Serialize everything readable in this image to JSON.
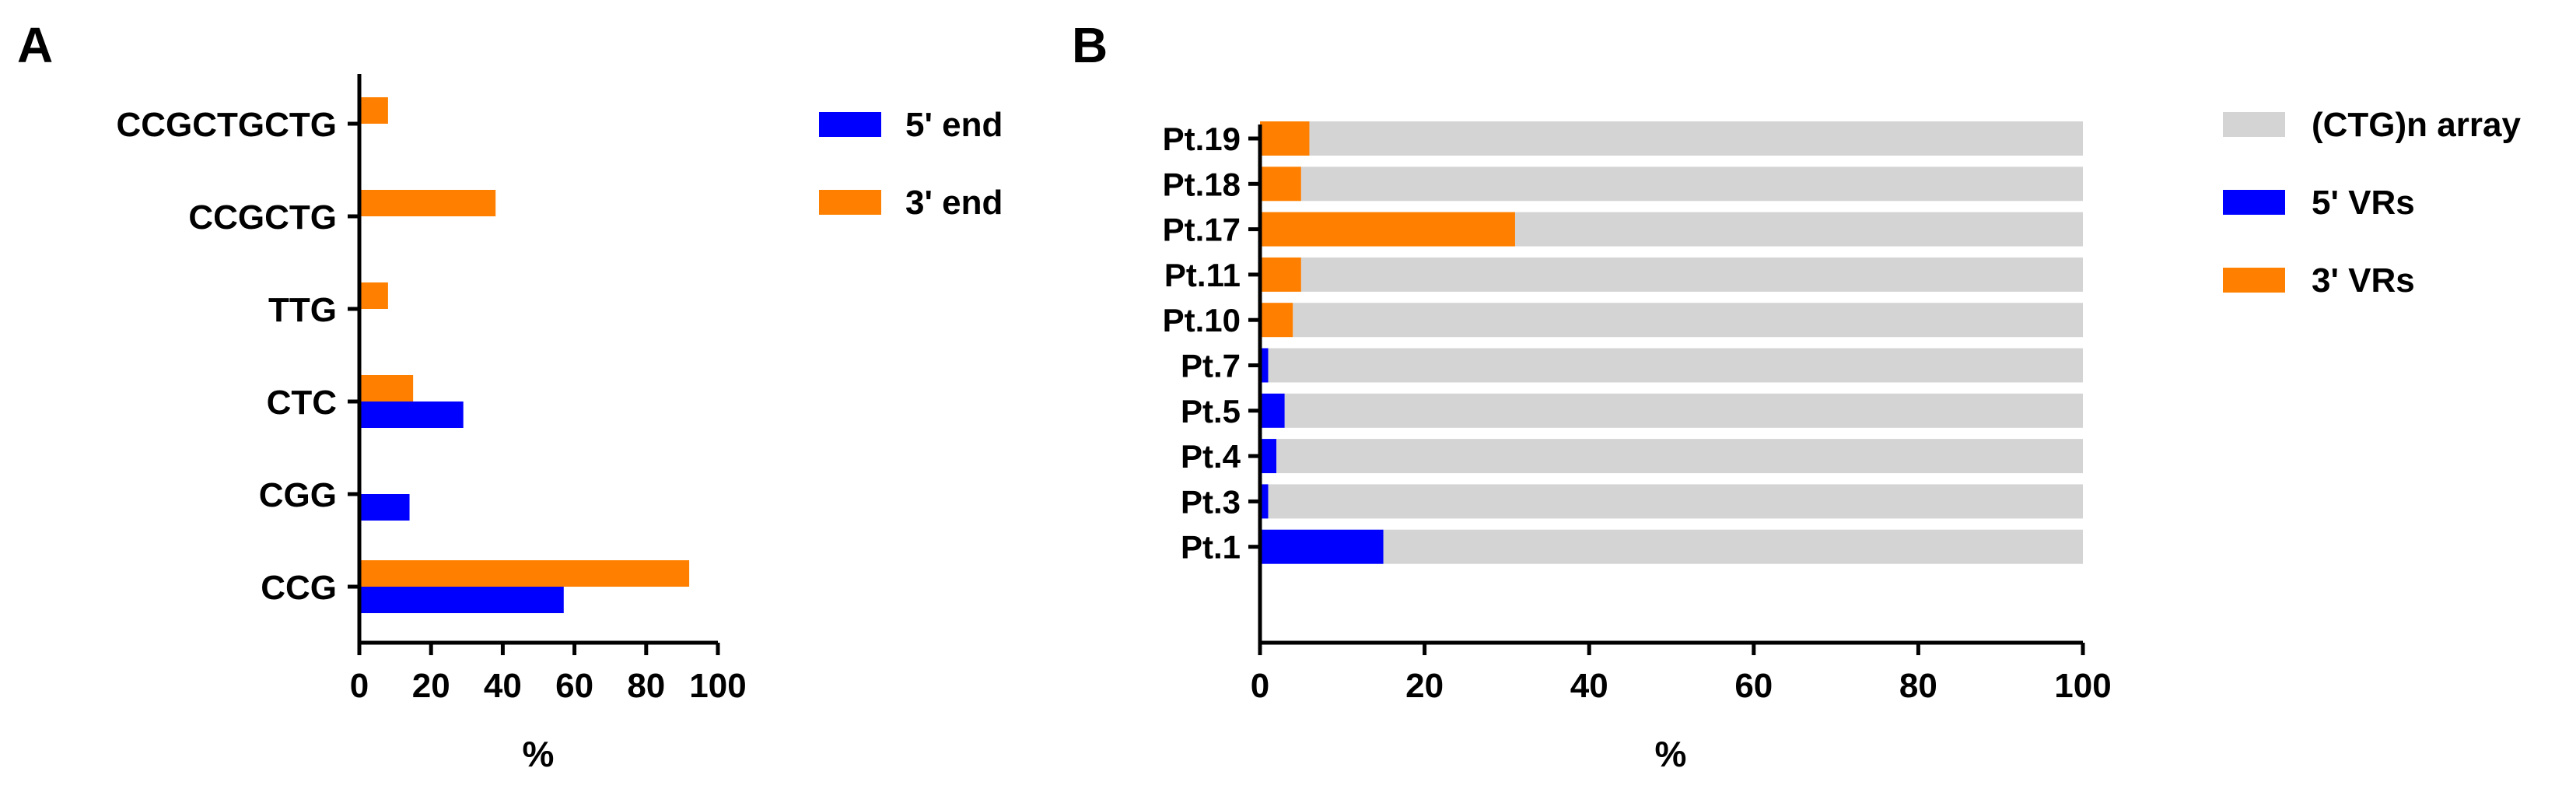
{
  "colors": {
    "five_prime": "#0000FF",
    "three_prime": "#FF8000",
    "array": "#D4D4D4",
    "axis": "#000000"
  },
  "chart_data": [
    {
      "panel_label": "A",
      "type": "bar",
      "orientation": "horizontal",
      "categories": [
        "CCGCTGCTG",
        "CCGCTG",
        "TTG",
        "CTC",
        "CGG",
        "CCG"
      ],
      "series": [
        {
          "name": "5' end",
          "values": [
            0,
            0,
            0,
            29,
            14,
            57
          ]
        },
        {
          "name": "3' end",
          "values": [
            8,
            38,
            8,
            15,
            0,
            92
          ]
        }
      ],
      "xlabel": "%",
      "xlim": [
        0,
        100
      ],
      "xticks": [
        "0",
        "20",
        "40",
        "60",
        "80",
        "100"
      ],
      "legend": [
        "5' end",
        "3' end"
      ]
    },
    {
      "panel_label": "B",
      "type": "bar",
      "orientation": "horizontal",
      "stacked": true,
      "categories": [
        "Pt.19",
        "Pt.18",
        "Pt.17",
        "Pt.11",
        "Pt.10",
        "Pt.7",
        "Pt.5",
        "Pt.4",
        "Pt.3",
        "Pt.1"
      ],
      "series": [
        {
          "name": "5' VRs",
          "values": [
            0,
            0,
            0,
            0,
            0,
            1,
            3,
            2,
            1,
            15
          ]
        },
        {
          "name": "3' VRs",
          "values": [
            6,
            5,
            31,
            5,
            4,
            0,
            0,
            0,
            0,
            0
          ]
        },
        {
          "name": "(CTG)n array",
          "values": [
            94,
            95,
            69,
            95,
            96,
            99,
            97,
            98,
            99,
            85
          ]
        }
      ],
      "xlabel": "%",
      "xlim": [
        0,
        100
      ],
      "xticks": [
        "0",
        "20",
        "40",
        "60",
        "80",
        "100"
      ],
      "legend": [
        "(CTG)n array",
        "5' VRs",
        "3' VRs"
      ]
    }
  ]
}
